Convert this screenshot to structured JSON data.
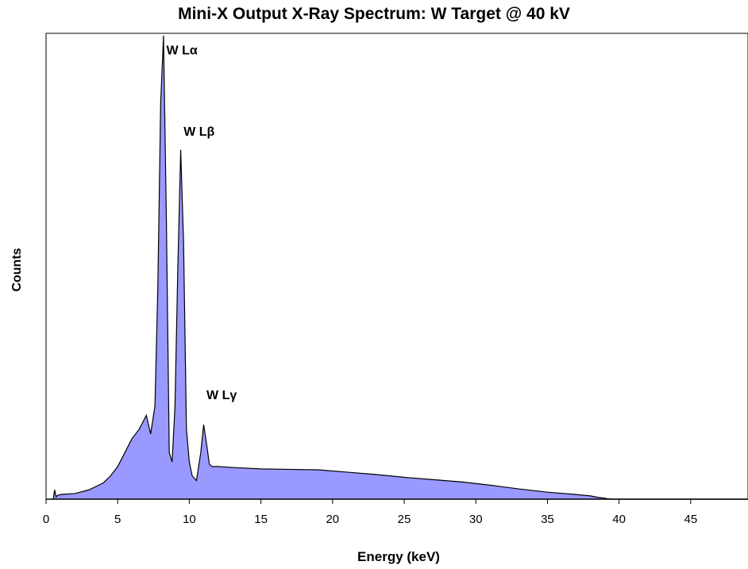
{
  "chart_data": {
    "type": "area",
    "title": "Mini-X Output X-Ray Spectrum: W Target @ 40 kV",
    "xlabel": "Energy (keV)",
    "ylabel": "Counts",
    "xlim": [
      0,
      49
    ],
    "ylim": [
      0,
      1
    ],
    "xticks": [
      0,
      5,
      10,
      15,
      20,
      25,
      30,
      35,
      40,
      45
    ],
    "xtick_labels": [
      "0",
      "5",
      "10",
      "15",
      "20",
      "25",
      "30",
      "35",
      "40",
      "45"
    ],
    "yticks_shown": false,
    "grid": false,
    "fill_color": "#9999ff",
    "line_color": "#000000",
    "series": [
      {
        "x": [
          0.5,
          0.6,
          0.7,
          0.8,
          1,
          2,
          3,
          4,
          4.5,
          5,
          5.5,
          6,
          6.5,
          7,
          7.3,
          7.6,
          7.8,
          8.0,
          8.2,
          8.4,
          8.6,
          8.8,
          9.0,
          9.2,
          9.4,
          9.6,
          9.8,
          10.0,
          10.2,
          10.5,
          10.8,
          11.0,
          11.2,
          11.4,
          11.6,
          12,
          13,
          15,
          17,
          19,
          21,
          23,
          25,
          27,
          29,
          31,
          33,
          35,
          37,
          38,
          38.5,
          39,
          39.2,
          39.5,
          40,
          45,
          49
        ],
        "y": [
          0.0,
          0.02,
          0.005,
          0.008,
          0.01,
          0.012,
          0.02,
          0.035,
          0.05,
          0.07,
          0.1,
          0.13,
          0.15,
          0.18,
          0.14,
          0.2,
          0.45,
          0.85,
          0.995,
          0.6,
          0.1,
          0.08,
          0.2,
          0.5,
          0.75,
          0.55,
          0.15,
          0.08,
          0.05,
          0.04,
          0.1,
          0.16,
          0.12,
          0.075,
          0.07,
          0.07,
          0.068,
          0.065,
          0.064,
          0.063,
          0.058,
          0.053,
          0.047,
          0.042,
          0.037,
          0.03,
          0.022,
          0.015,
          0.01,
          0.007,
          0.004,
          0.002,
          0.001,
          0.0,
          0.0,
          0.0,
          0.0
        ]
      }
    ],
    "annotations": [
      {
        "text": "W Lα",
        "x": 8.4,
        "y": 0.955
      },
      {
        "text": "W Lβ",
        "x": 9.6,
        "y": 0.78
      },
      {
        "text": "W Lγ",
        "x": 11.2,
        "y": 0.215
      }
    ]
  }
}
